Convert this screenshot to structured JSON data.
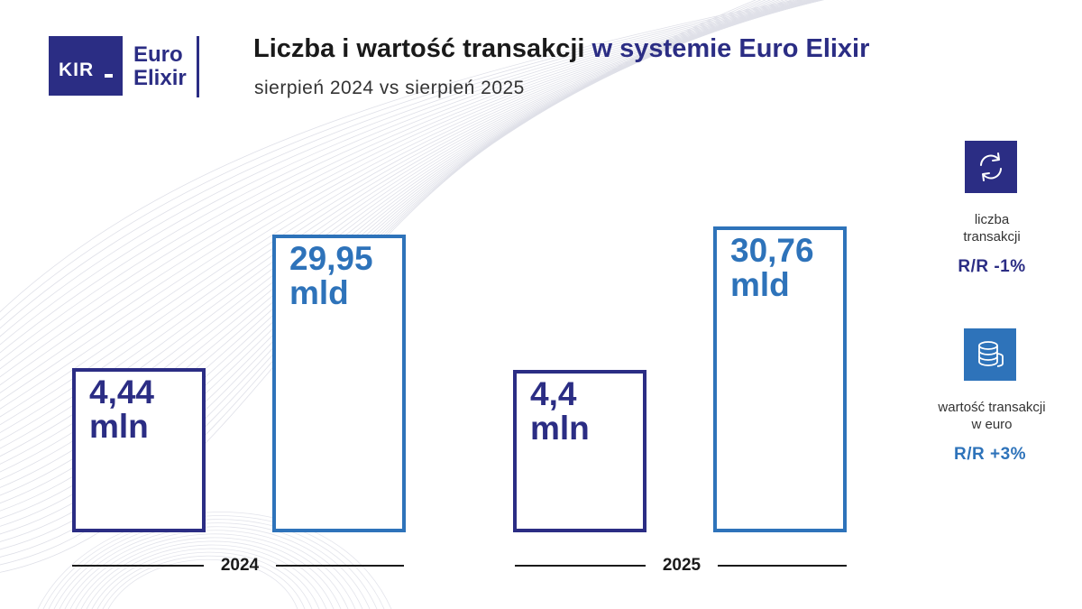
{
  "header": {
    "logo_kir": "KIR",
    "logo_euro": "Euro",
    "logo_elixir": "Elixir",
    "title_main": "Liczba i wartość transakcji",
    "title_accent": "w systemie Euro Elixir",
    "subtitle": "sierpień 2024 vs sierpień 2025"
  },
  "chart_data": {
    "type": "bar",
    "title": "Liczba i wartość transakcji w systemie Euro Elixir",
    "subtitle": "sierpień 2024 vs sierpień 2025",
    "categories": [
      "2024",
      "2025"
    ],
    "series": [
      {
        "name": "liczba transakcji",
        "unit": "mln",
        "values": [
          4.44,
          4.4
        ],
        "labels": [
          "4,44",
          "4,4"
        ]
      },
      {
        "name": "wartość transakcji w euro",
        "unit": "mld",
        "values": [
          29.95,
          30.76
        ],
        "labels": [
          "29,95",
          "30,76"
        ]
      }
    ],
    "colors": {
      "count": "#2b2d84",
      "value": "#2e73ba"
    }
  },
  "legend": {
    "count": {
      "icon": "refresh-arrows-icon",
      "label_line1": "liczba",
      "label_line2": "transakcji",
      "yoy": "R/R -1%"
    },
    "value": {
      "icon": "coin-stack-icon",
      "label_line1": "wartość transakcji",
      "label_line2": "w euro",
      "yoy": "R/R +3%"
    }
  }
}
